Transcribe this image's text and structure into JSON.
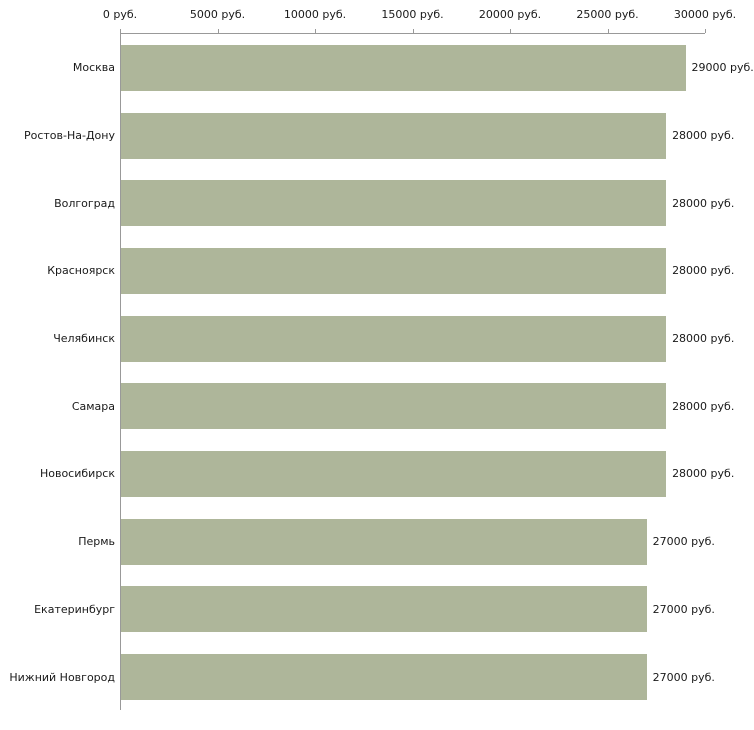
{
  "chart_data": {
    "type": "bar",
    "orientation": "horizontal",
    "title": "",
    "xlabel": "",
    "ylabel": "",
    "categories": [
      "Москва",
      "Ростов-На-Дону",
      "Волгоград",
      "Красноярск",
      "Челябинск",
      "Самара",
      "Новосибирск",
      "Пермь",
      "Екатеринбург",
      "Нижний Новгород"
    ],
    "values": [
      29000,
      28000,
      28000,
      28000,
      28000,
      28000,
      28000,
      27000,
      27000,
      27000
    ],
    "value_labels": [
      "29000 руб.",
      "28000 руб.",
      "28000 руб.",
      "28000 руб.",
      "28000 руб.",
      "28000 руб.",
      "28000 руб.",
      "27000 руб.",
      "27000 руб.",
      "27000 руб."
    ],
    "xlim": [
      0,
      30000
    ],
    "x_ticks": [
      {
        "value": 0,
        "label": "0 руб."
      },
      {
        "value": 5000,
        "label": "5000 руб."
      },
      {
        "value": 10000,
        "label": "10000 руб."
      },
      {
        "value": 15000,
        "label": "15000 руб."
      },
      {
        "value": 20000,
        "label": "20000 руб."
      },
      {
        "value": 25000,
        "label": "25000 руб."
      },
      {
        "value": 30000,
        "label": "30000 руб."
      }
    ],
    "bar_color": "#aeb69a",
    "axis_color": "#999999",
    "text_color": "#1a1a1a",
    "grid": false,
    "legend": null
  }
}
